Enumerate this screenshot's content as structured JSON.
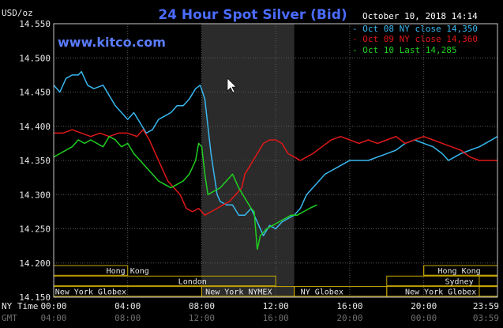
{
  "colors": {
    "background": "#000000",
    "frame": "#c8c8c8",
    "grid": "#5a5a5a",
    "shade": "#2b2b2b",
    "session_stroke": "#c8a800",
    "oct08": "#38b8f0",
    "oct09": "#e01818",
    "oct10": "#20d020"
  },
  "header": {
    "title": "24 Hour Spot Silver (Bid)",
    "unit_label": "USD/oz",
    "date_stamp": "October 10, 2018 14:14",
    "site": "www.kitco.com"
  },
  "sessions": [
    {
      "label": "Hong Kong",
      "start": "20:00",
      "end": "04:00",
      "row": 0,
      "text_anchor": "04:00"
    },
    {
      "label": "London",
      "start": "23:00",
      "end": "12:00",
      "row": 1,
      "text_anchor": "07:30"
    },
    {
      "label": "New York Globex",
      "start": "23:00",
      "end": "08:00",
      "row": 2,
      "text_anchor": "02:00"
    },
    {
      "label": "New York NYMEX",
      "start": "08:00",
      "end": "13:00",
      "row": 2,
      "text_anchor": "10:00"
    },
    {
      "label": "NY Globex",
      "start": "13:00",
      "end": "18:00",
      "row": 2,
      "text_anchor": "14:30"
    },
    {
      "label": "Hong Kong",
      "start": "20:00",
      "end": "23:59",
      "row": 0,
      "text_anchor": "21:55"
    },
    {
      "label": "Sydney",
      "start": "18:00",
      "end": "23:59",
      "row": 1,
      "text_anchor": "21:55"
    },
    {
      "label": "New York Globex",
      "start": "18:00",
      "end": "23:59",
      "row": 2,
      "text_anchor": "20:55"
    }
  ],
  "chart_data": {
    "type": "line",
    "title": "24 Hour Spot Silver (Bid)",
    "ylabel": "USD/oz",
    "ylim": [
      14.15,
      14.55
    ],
    "yticks": [
      "14.550",
      "14.500",
      "14.450",
      "14.400",
      "14.350",
      "14.300",
      "14.250",
      "14.200",
      "14.150"
    ],
    "xlim": [
      "00:00",
      "23:59"
    ],
    "xticks_ny": [
      "00:00",
      "04:00",
      "08:00",
      "12:00",
      "16:00",
      "20:00",
      "23:59"
    ],
    "xticks_gmt": [
      "04:00",
      "08:00",
      "12:00",
      "16:00",
      "20:00",
      "00:00",
      "03:59"
    ],
    "x_row_labels": {
      "ny": "NY Time",
      "gmt": "GMT"
    },
    "shaded_period": [
      "08:00",
      "13:00"
    ],
    "grid": true,
    "legend_position": "top-right",
    "series": [
      {
        "name": "Oct 08 NY close 14.350",
        "legend_text": "Oct 08 NY close 14,350",
        "color_key": "oct08",
        "points": [
          [
            "00:00",
            14.46
          ],
          [
            "00:20",
            14.45
          ],
          [
            "00:40",
            14.47
          ],
          [
            "01:00",
            14.475
          ],
          [
            "01:20",
            14.475
          ],
          [
            "01:30",
            14.48
          ],
          [
            "01:50",
            14.46
          ],
          [
            "02:10",
            14.455
          ],
          [
            "02:40",
            14.46
          ],
          [
            "03:00",
            14.445
          ],
          [
            "03:20",
            14.43
          ],
          [
            "03:40",
            14.42
          ],
          [
            "04:00",
            14.41
          ],
          [
            "04:20",
            14.42
          ],
          [
            "04:40",
            14.405
          ],
          [
            "05:00",
            14.39
          ],
          [
            "05:20",
            14.395
          ],
          [
            "05:40",
            14.41
          ],
          [
            "06:00",
            14.415
          ],
          [
            "06:20",
            14.42
          ],
          [
            "06:40",
            14.43
          ],
          [
            "07:00",
            14.43
          ],
          [
            "07:20",
            14.44
          ],
          [
            "07:40",
            14.455
          ],
          [
            "07:55",
            14.46
          ],
          [
            "08:10",
            14.44
          ],
          [
            "08:20",
            14.4
          ],
          [
            "08:30",
            14.36
          ],
          [
            "08:40",
            14.33
          ],
          [
            "08:50",
            14.3
          ],
          [
            "09:00",
            14.29
          ],
          [
            "09:20",
            14.285
          ],
          [
            "09:40",
            14.285
          ],
          [
            "10:00",
            14.27
          ],
          [
            "10:20",
            14.27
          ],
          [
            "10:40",
            14.28
          ],
          [
            "11:00",
            14.26
          ],
          [
            "11:20",
            14.24
          ],
          [
            "11:40",
            14.255
          ],
          [
            "12:00",
            14.25
          ],
          [
            "12:20",
            14.26
          ],
          [
            "12:40",
            14.265
          ],
          [
            "13:00",
            14.27
          ],
          [
            "13:20",
            14.28
          ],
          [
            "13:40",
            14.3
          ],
          [
            "14:00",
            14.31
          ],
          [
            "14:20",
            14.32
          ],
          [
            "14:40",
            14.33
          ],
          [
            "15:00",
            14.335
          ],
          [
            "15:20",
            14.34
          ],
          [
            "15:40",
            14.345
          ],
          [
            "16:00",
            14.35
          ],
          [
            "16:30",
            14.35
          ],
          [
            "17:00",
            14.35
          ],
          [
            "17:30",
            14.355
          ],
          [
            "18:00",
            14.36
          ],
          [
            "18:30",
            14.365
          ],
          [
            "19:00",
            14.375
          ],
          [
            "19:30",
            14.38
          ],
          [
            "20:00",
            14.375
          ],
          [
            "20:30",
            14.37
          ],
          [
            "21:00",
            14.36
          ],
          [
            "21:20",
            14.35
          ],
          [
            "21:40",
            14.355
          ],
          [
            "22:00",
            14.36
          ],
          [
            "22:30",
            14.365
          ],
          [
            "23:00",
            14.37
          ],
          [
            "23:40",
            14.38
          ],
          [
            "23:59",
            14.385
          ]
        ]
      },
      {
        "name": "Oct 09 NY close 14.360",
        "legend_text": "Oct 09 NY close 14,360",
        "color_key": "oct09",
        "points": [
          [
            "00:00",
            14.39
          ],
          [
            "00:30",
            14.39
          ],
          [
            "01:00",
            14.395
          ],
          [
            "01:30",
            14.39
          ],
          [
            "02:00",
            14.385
          ],
          [
            "02:30",
            14.39
          ],
          [
            "03:00",
            14.385
          ],
          [
            "03:30",
            14.39
          ],
          [
            "04:00",
            14.39
          ],
          [
            "04:30",
            14.385
          ],
          [
            "04:50",
            14.395
          ],
          [
            "05:10",
            14.38
          ],
          [
            "05:30",
            14.36
          ],
          [
            "05:50",
            14.34
          ],
          [
            "06:10",
            14.32
          ],
          [
            "06:30",
            14.31
          ],
          [
            "06:50",
            14.3
          ],
          [
            "07:10",
            14.28
          ],
          [
            "07:30",
            14.275
          ],
          [
            "07:50",
            14.28
          ],
          [
            "08:10",
            14.27
          ],
          [
            "08:30",
            14.275
          ],
          [
            "08:50",
            14.28
          ],
          [
            "09:10",
            14.285
          ],
          [
            "09:30",
            14.29
          ],
          [
            "09:50",
            14.3
          ],
          [
            "10:10",
            14.31
          ],
          [
            "10:20",
            14.33
          ],
          [
            "10:40",
            14.345
          ],
          [
            "11:00",
            14.36
          ],
          [
            "11:20",
            14.375
          ],
          [
            "11:40",
            14.38
          ],
          [
            "12:00",
            14.38
          ],
          [
            "12:20",
            14.375
          ],
          [
            "12:40",
            14.36
          ],
          [
            "13:00",
            14.355
          ],
          [
            "13:20",
            14.35
          ],
          [
            "13:40",
            14.355
          ],
          [
            "14:00",
            14.36
          ],
          [
            "14:30",
            14.37
          ],
          [
            "15:00",
            14.38
          ],
          [
            "15:30",
            14.385
          ],
          [
            "16:00",
            14.38
          ],
          [
            "16:30",
            14.375
          ],
          [
            "17:00",
            14.38
          ],
          [
            "17:30",
            14.375
          ],
          [
            "18:00",
            14.38
          ],
          [
            "18:30",
            14.385
          ],
          [
            "19:00",
            14.375
          ],
          [
            "19:30",
            14.38
          ],
          [
            "20:00",
            14.385
          ],
          [
            "20:30",
            14.38
          ],
          [
            "21:00",
            14.375
          ],
          [
            "21:30",
            14.37
          ],
          [
            "22:00",
            14.365
          ],
          [
            "22:30",
            14.355
          ],
          [
            "23:00",
            14.35
          ],
          [
            "23:30",
            14.35
          ],
          [
            "23:59",
            14.35
          ]
        ]
      },
      {
        "name": "Oct 10 Last 14.285",
        "legend_text": "Oct 10 Last 14,285",
        "color_key": "oct10",
        "points": [
          [
            "00:00",
            14.355
          ],
          [
            "00:20",
            14.36
          ],
          [
            "00:40",
            14.365
          ],
          [
            "01:00",
            14.37
          ],
          [
            "01:20",
            14.38
          ],
          [
            "01:40",
            14.375
          ],
          [
            "02:00",
            14.38
          ],
          [
            "02:20",
            14.375
          ],
          [
            "02:40",
            14.37
          ],
          [
            "03:00",
            14.385
          ],
          [
            "03:20",
            14.38
          ],
          [
            "03:40",
            14.37
          ],
          [
            "04:00",
            14.375
          ],
          [
            "04:20",
            14.36
          ],
          [
            "04:40",
            14.35
          ],
          [
            "05:00",
            14.34
          ],
          [
            "05:20",
            14.33
          ],
          [
            "05:40",
            14.32
          ],
          [
            "06:00",
            14.315
          ],
          [
            "06:20",
            14.31
          ],
          [
            "06:40",
            14.315
          ],
          [
            "07:00",
            14.32
          ],
          [
            "07:20",
            14.33
          ],
          [
            "07:40",
            14.35
          ],
          [
            "07:50",
            14.375
          ],
          [
            "08:00",
            14.37
          ],
          [
            "08:10",
            14.33
          ],
          [
            "08:20",
            14.3
          ],
          [
            "08:40",
            14.305
          ],
          [
            "09:00",
            14.31
          ],
          [
            "09:20",
            14.32
          ],
          [
            "09:40",
            14.33
          ],
          [
            "10:00",
            14.31
          ],
          [
            "10:20",
            14.295
          ],
          [
            "10:40",
            14.28
          ],
          [
            "10:50",
            14.275
          ],
          [
            "11:00",
            14.22
          ],
          [
            "11:10",
            14.24
          ],
          [
            "11:30",
            14.25
          ],
          [
            "11:50",
            14.255
          ],
          [
            "12:10",
            14.26
          ],
          [
            "12:30",
            14.265
          ],
          [
            "12:50",
            14.27
          ],
          [
            "13:10",
            14.27
          ],
          [
            "13:30",
            14.275
          ],
          [
            "13:50",
            14.28
          ],
          [
            "14:14",
            14.285
          ]
        ]
      }
    ]
  }
}
